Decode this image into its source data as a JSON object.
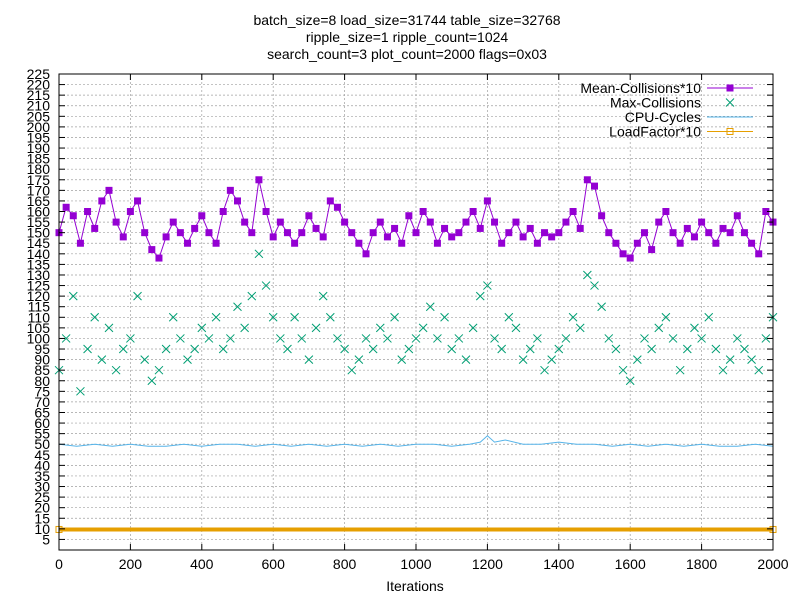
{
  "chart_data": {
    "type": "line",
    "title_lines": [
      "batch_size=8 load_size=31744 table_size=32768",
      "ripple_size=1 ripple_count=1024",
      "search_count=3 plot_count=2000 flags=0x03"
    ],
    "xlabel": "Iterations",
    "ylabel": "",
    "xlim": [
      0,
      2000
    ],
    "ylim": [
      0,
      225
    ],
    "x_ticks": [
      0,
      200,
      400,
      600,
      800,
      1000,
      1200,
      1400,
      1600,
      1800,
      2000
    ],
    "y_ticks": [
      5,
      10,
      15,
      20,
      25,
      30,
      35,
      40,
      45,
      50,
      55,
      60,
      65,
      70,
      75,
      80,
      85,
      90,
      95,
      100,
      105,
      110,
      115,
      120,
      125,
      130,
      135,
      140,
      145,
      150,
      155,
      160,
      165,
      170,
      175,
      180,
      185,
      190,
      195,
      200,
      205,
      210,
      215,
      220,
      225
    ],
    "grid": true,
    "legend_position": "top-right",
    "series": [
      {
        "name": "Mean-Collisions*10",
        "style": "linespoints",
        "marker": "filled-square",
        "color": "#9400d3",
        "x": [
          0,
          20,
          40,
          60,
          80,
          100,
          120,
          140,
          160,
          180,
          200,
          220,
          240,
          260,
          280,
          300,
          320,
          340,
          360,
          380,
          400,
          420,
          440,
          460,
          480,
          500,
          520,
          540,
          560,
          580,
          600,
          620,
          640,
          660,
          680,
          700,
          720,
          740,
          760,
          780,
          800,
          820,
          840,
          860,
          880,
          900,
          920,
          940,
          960,
          980,
          1000,
          1020,
          1040,
          1060,
          1080,
          1100,
          1120,
          1140,
          1160,
          1180,
          1200,
          1220,
          1240,
          1260,
          1280,
          1300,
          1320,
          1340,
          1360,
          1380,
          1400,
          1420,
          1440,
          1460,
          1480,
          1500,
          1520,
          1540,
          1560,
          1580,
          1600,
          1620,
          1640,
          1660,
          1680,
          1700,
          1720,
          1740,
          1760,
          1780,
          1800,
          1820,
          1840,
          1860,
          1880,
          1900,
          1920,
          1940,
          1960,
          1980,
          2000
        ],
        "y": [
          150,
          162,
          158,
          145,
          160,
          152,
          165,
          170,
          155,
          148,
          160,
          165,
          150,
          142,
          138,
          148,
          155,
          150,
          145,
          152,
          158,
          150,
          145,
          160,
          170,
          165,
          155,
          150,
          175,
          160,
          148,
          155,
          150,
          145,
          150,
          158,
          152,
          148,
          165,
          162,
          155,
          150,
          145,
          140,
          150,
          155,
          148,
          152,
          145,
          158,
          150,
          160,
          155,
          145,
          152,
          148,
          150,
          155,
          160,
          152,
          165,
          155,
          145,
          150,
          155,
          148,
          152,
          145,
          150,
          148,
          150,
          155,
          160,
          152,
          175,
          172,
          158,
          150,
          145,
          140,
          138,
          145,
          150,
          142,
          155,
          160,
          150,
          145,
          152,
          148,
          155,
          150,
          145,
          152,
          150,
          158,
          150,
          145,
          140,
          160,
          155
        ]
      },
      {
        "name": "Max-Collisions",
        "style": "points",
        "marker": "x",
        "color": "#009e73",
        "x": [
          0,
          20,
          40,
          60,
          80,
          100,
          120,
          140,
          160,
          180,
          200,
          220,
          240,
          260,
          280,
          300,
          320,
          340,
          360,
          380,
          400,
          420,
          440,
          460,
          480,
          500,
          520,
          540,
          560,
          580,
          600,
          620,
          640,
          660,
          680,
          700,
          720,
          740,
          760,
          780,
          800,
          820,
          840,
          860,
          880,
          900,
          920,
          940,
          960,
          980,
          1000,
          1020,
          1040,
          1060,
          1080,
          1100,
          1120,
          1140,
          1160,
          1180,
          1200,
          1220,
          1240,
          1260,
          1280,
          1300,
          1320,
          1340,
          1360,
          1380,
          1400,
          1420,
          1440,
          1460,
          1480,
          1500,
          1520,
          1540,
          1560,
          1580,
          1600,
          1620,
          1640,
          1660,
          1680,
          1700,
          1720,
          1740,
          1760,
          1780,
          1800,
          1820,
          1840,
          1860,
          1880,
          1900,
          1920,
          1940,
          1960,
          1980,
          2000
        ],
        "y": [
          85,
          100,
          120,
          75,
          95,
          110,
          90,
          105,
          85,
          95,
          100,
          120,
          90,
          80,
          85,
          95,
          110,
          100,
          90,
          95,
          105,
          100,
          110,
          95,
          100,
          115,
          105,
          120,
          140,
          125,
          110,
          100,
          95,
          110,
          100,
          90,
          105,
          120,
          110,
          100,
          95,
          85,
          90,
          100,
          95,
          105,
          100,
          110,
          90,
          95,
          100,
          105,
          115,
          100,
          110,
          95,
          100,
          90,
          105,
          120,
          125,
          100,
          95,
          110,
          105,
          90,
          95,
          100,
          85,
          90,
          95,
          100,
          110,
          105,
          130,
          125,
          115,
          100,
          95,
          85,
          80,
          90,
          100,
          95,
          105,
          110,
          100,
          85,
          95,
          105,
          100,
          110,
          95,
          85,
          90,
          100,
          95,
          90,
          85,
          100,
          110
        ]
      },
      {
        "name": "CPU-Cycles",
        "style": "lines",
        "color": "#56b4e9",
        "x": [
          0,
          50,
          100,
          150,
          200,
          250,
          300,
          350,
          400,
          450,
          500,
          550,
          600,
          650,
          700,
          750,
          800,
          850,
          900,
          950,
          1000,
          1050,
          1100,
          1150,
          1180,
          1200,
          1220,
          1250,
          1300,
          1350,
          1400,
          1450,
          1500,
          1550,
          1600,
          1650,
          1700,
          1750,
          1800,
          1850,
          1900,
          1950,
          2000
        ],
        "y": [
          50,
          49,
          50,
          49,
          50,
          49,
          49,
          50,
          49,
          50,
          50,
          49,
          50,
          49,
          50,
          49,
          50,
          49,
          50,
          49,
          50,
          50,
          49,
          50,
          51,
          54,
          51,
          52,
          50,
          50,
          51,
          50,
          50,
          49,
          50,
          49,
          50,
          49,
          50,
          49,
          49,
          50,
          49
        ]
      },
      {
        "name": "LoadFactor*10",
        "style": "linespoints",
        "marker": "open-square",
        "color": "#e69f00",
        "x": [
          0,
          2000
        ],
        "y": [
          9.7,
          9.7
        ]
      }
    ]
  }
}
